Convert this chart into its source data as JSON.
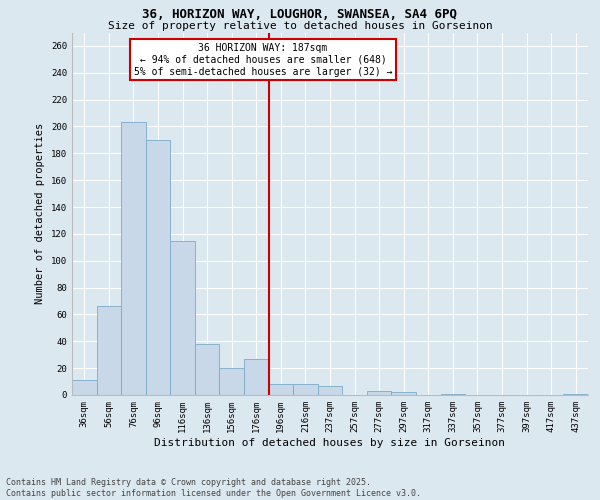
{
  "title_line1": "36, HORIZON WAY, LOUGHOR, SWANSEA, SA4 6PQ",
  "title_line2": "Size of property relative to detached houses in Gorseinon",
  "xlabel": "Distribution of detached houses by size in Gorseinon",
  "ylabel": "Number of detached properties",
  "footer": "Contains HM Land Registry data © Crown copyright and database right 2025.\nContains public sector information licensed under the Open Government Licence v3.0.",
  "categories": [
    "36sqm",
    "56sqm",
    "76sqm",
    "96sqm",
    "116sqm",
    "136sqm",
    "156sqm",
    "176sqm",
    "196sqm",
    "216sqm",
    "237sqm",
    "257sqm",
    "277sqm",
    "297sqm",
    "317sqm",
    "337sqm",
    "357sqm",
    "377sqm",
    "397sqm",
    "417sqm",
    "437sqm"
  ],
  "values": [
    11,
    66,
    203,
    190,
    115,
    38,
    20,
    27,
    8,
    8,
    7,
    0,
    3,
    2,
    0,
    1,
    0,
    0,
    0,
    0,
    1
  ],
  "bar_color": "#c8d8e8",
  "bar_edge_color": "#7aaac8",
  "background_color": "#dce8f0",
  "vline_color": "#cc0000",
  "annotation_text": "36 HORIZON WAY: 187sqm\n← 94% of detached houses are smaller (648)\n5% of semi-detached houses are larger (32) →",
  "annotation_box_color": "#cc0000",
  "ylim": [
    0,
    270
  ],
  "yticks": [
    0,
    20,
    40,
    60,
    80,
    100,
    120,
    140,
    160,
    180,
    200,
    220,
    240,
    260
  ],
  "vline_pos": 7.5,
  "grid_color": "#ffffff",
  "title1_fontsize": 9,
  "title2_fontsize": 8,
  "xlabel_fontsize": 8,
  "ylabel_fontsize": 7.5,
  "tick_fontsize": 6.5,
  "annot_fontsize": 7,
  "footer_fontsize": 6
}
